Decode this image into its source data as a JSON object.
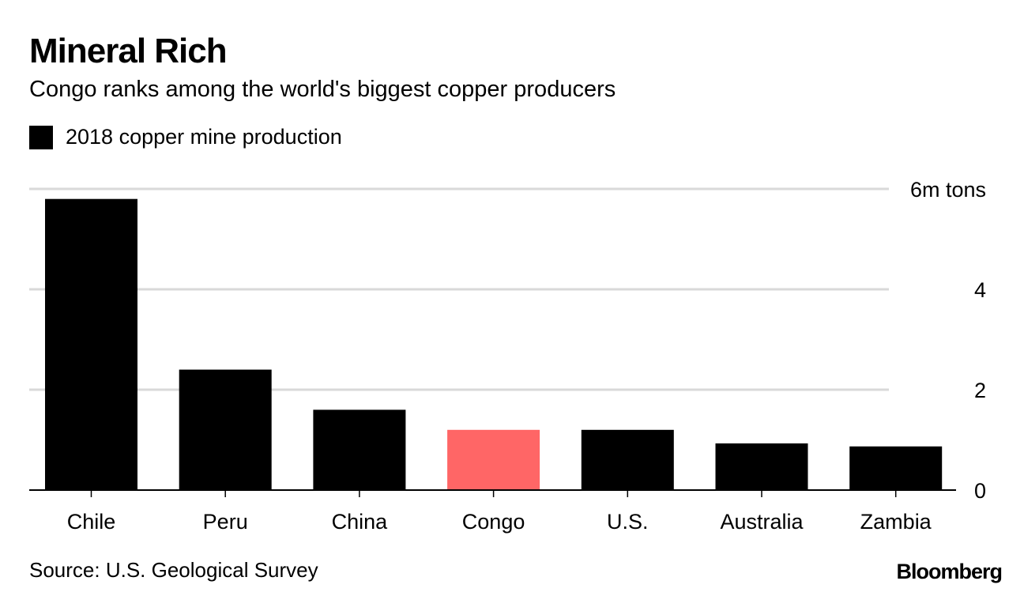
{
  "title": "Mineral Rich",
  "subtitle": "Congo ranks among the world's biggest copper producers",
  "source": "Source: U.S. Geological Survey",
  "logo": "Bloomberg",
  "chart_data": {
    "type": "bar",
    "title": "Mineral Rich",
    "subtitle": "Congo ranks among the world's biggest copper producers",
    "legend": [
      {
        "name": "2018 copper mine production",
        "color": "#000000"
      }
    ],
    "legend_placement": "top-left",
    "categories": [
      "Chile",
      "Peru",
      "China",
      "Congo",
      "U.S.",
      "Australia",
      "Zambia"
    ],
    "values": [
      5.8,
      2.4,
      1.6,
      1.2,
      1.2,
      0.93,
      0.87
    ],
    "colors": [
      "#000000",
      "#000000",
      "#000000",
      "#ff6666",
      "#000000",
      "#000000",
      "#000000"
    ],
    "highlight_color": "#ff6666",
    "ylim": [
      0,
      6
    ],
    "yticks": [
      0,
      2,
      4,
      6
    ],
    "ytick_labels": [
      "0",
      "2",
      "4",
      "6m tons"
    ],
    "yaxis_position": "right",
    "grid": true,
    "xlabel": "",
    "ylabel": ""
  }
}
